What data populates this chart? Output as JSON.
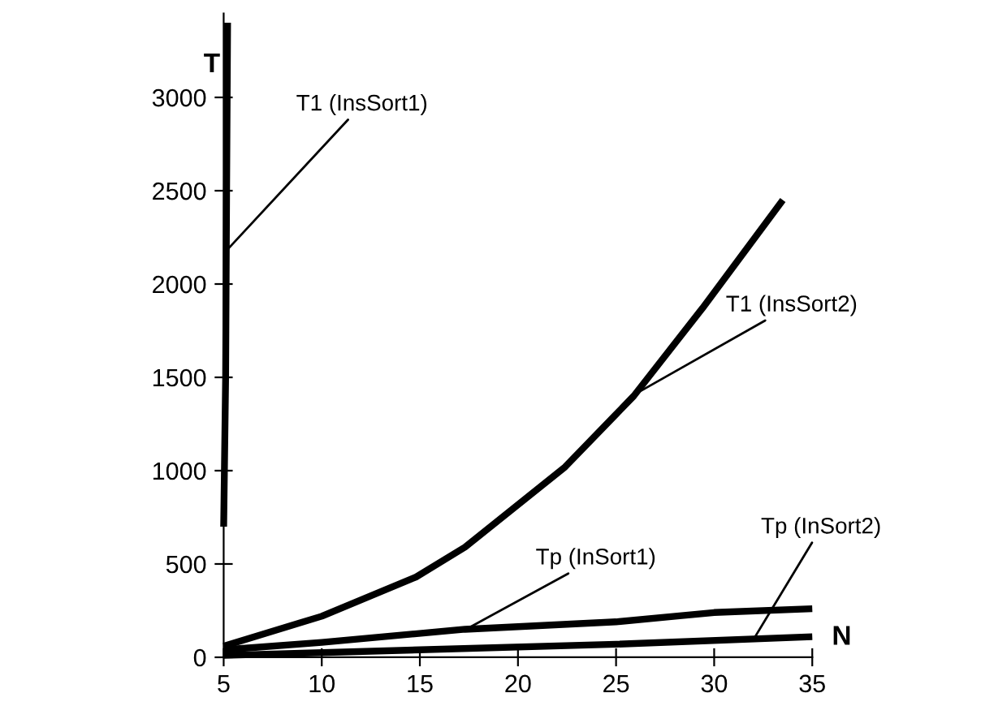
{
  "chart_data": {
    "type": "line",
    "xlabel": "N",
    "ylabel": "T",
    "xlim": [
      5,
      35
    ],
    "xticks": [
      5,
      10,
      15,
      20,
      25,
      30,
      35
    ],
    "ylim": [
      0,
      3450
    ],
    "yticks": [
      0,
      500,
      1000,
      1500,
      2000,
      2500,
      3000
    ],
    "grid": false,
    "legend": false,
    "marker": "none",
    "line_style": "solid",
    "series": [
      {
        "color": "#000000",
        "x": [
          5.0,
          5.1,
          5.15,
          5.2
        ],
        "values": [
          700,
          1500,
          2500,
          3400
        ]
      },
      {
        "color": "#000000",
        "x": [
          5,
          10,
          14.8,
          17.3,
          22.4,
          25.9,
          29.4,
          33.5
        ],
        "values": [
          60,
          220,
          430,
          590,
          1020,
          1400,
          1870,
          2450
        ]
      },
      {
        "color": "#000000",
        "x": [
          5,
          10,
          17.3,
          25,
          30,
          35
        ],
        "values": [
          40,
          80,
          150,
          190,
          240,
          260
        ]
      },
      {
        "color": "#000000",
        "x": [
          5,
          15,
          25,
          35
        ],
        "values": [
          10,
          40,
          70,
          110
        ]
      }
    ],
    "annotations": [
      {
        "text": "T1 (InsSort1)",
        "x": 5.15,
        "y": 2180
      },
      {
        "text": "T1 (InsSort2)",
        "x": 25.9,
        "y": 1406
      },
      {
        "text": "Tp (InSort1)",
        "x": 17.3,
        "y": 147
      },
      {
        "text": "Tp (InSort2)",
        "x": 32,
        "y": 95
      }
    ]
  }
}
